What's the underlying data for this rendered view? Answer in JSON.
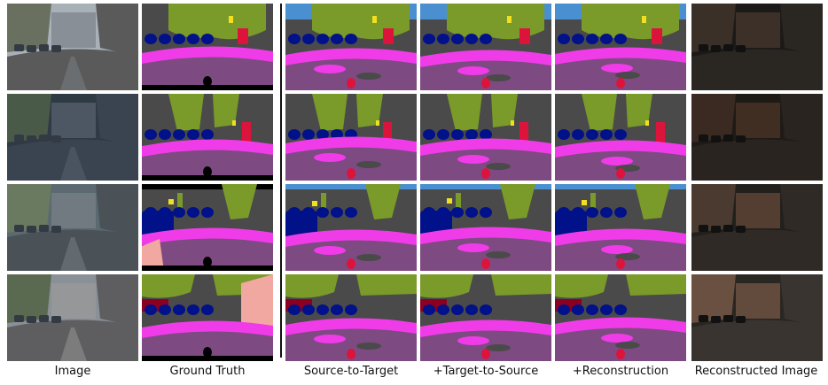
{
  "figure": {
    "captions": [
      "Image",
      "Ground Truth",
      "Source-to-Target",
      "+Target-to-Source",
      "+Reconstruction",
      "Reconstructed Image"
    ],
    "rows": 4,
    "colors": {
      "sky": "#4a90d0",
      "vegetation": "#7a9a2a",
      "building": "#4a4a4a",
      "road": "#7e4a82",
      "sidewalk": "#f03ce8",
      "car": "#00118a",
      "person": "#dc143c",
      "sign": "#f0e020",
      "terrain": "#98fb98",
      "wall": "#f0a8a0",
      "void": "#000000",
      "bicycle": "#8b0020"
    }
  }
}
